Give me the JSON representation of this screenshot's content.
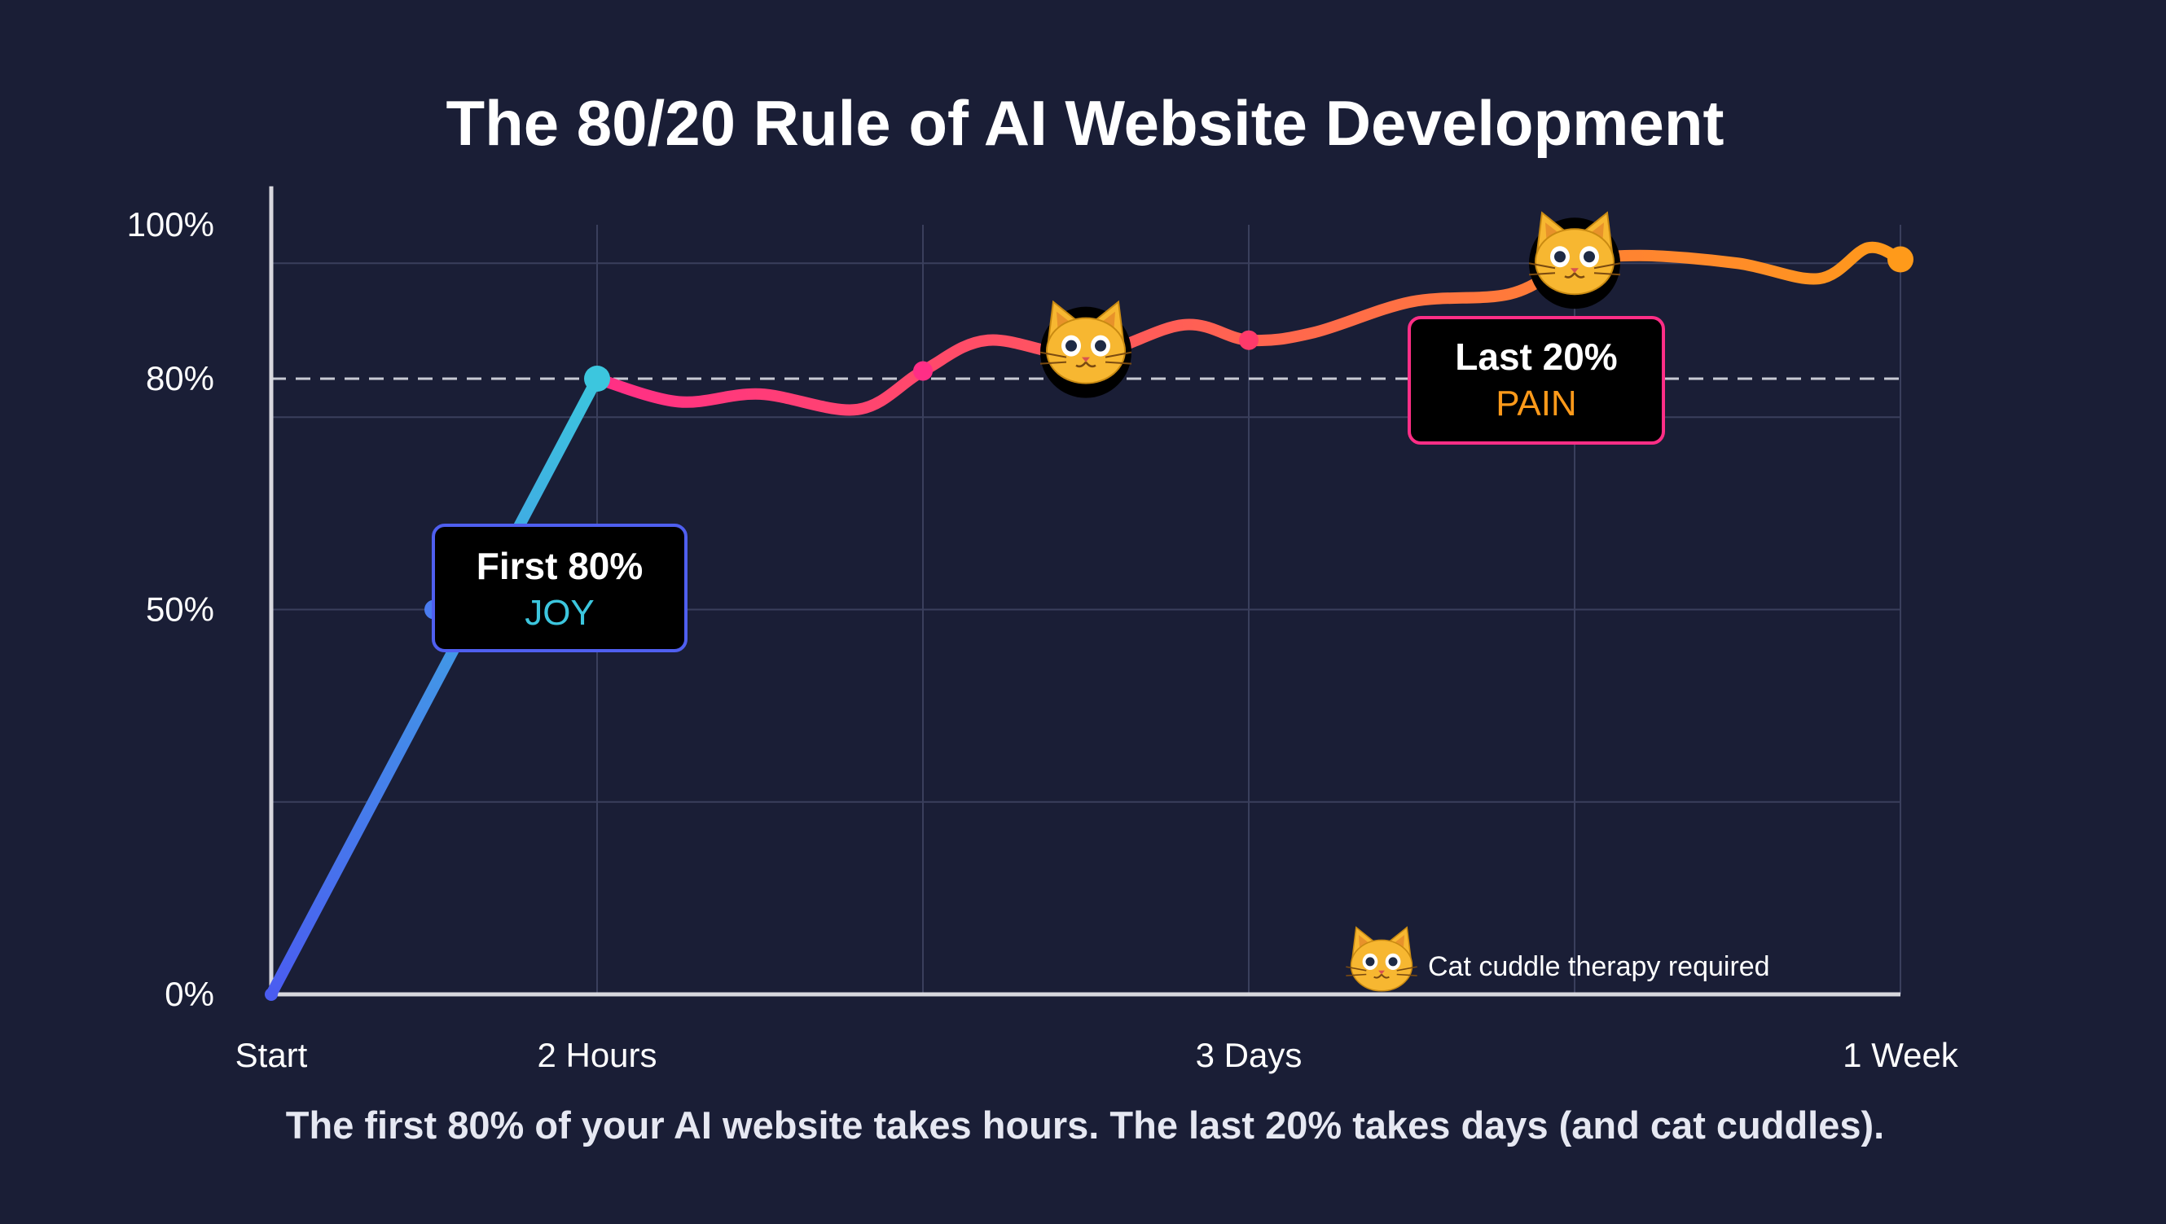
{
  "chart_data": {
    "type": "line",
    "title": "The 80/20 Rule of AI Website Development",
    "subtitle": "The first 80% of your AI website takes hours. The last 20% takes days (and cat cuddles).",
    "x_ticks": [
      "Start",
      "2 Hours",
      "3 Days",
      "1 Week"
    ],
    "y_ticks": [
      "0%",
      "50%",
      "80%",
      "100%"
    ],
    "ylim": [
      0,
      100
    ],
    "grid": true,
    "reference_line": 80,
    "series": [
      {
        "segment": "first",
        "color_start": "#4a5cf0",
        "color_end": "#3cc6de",
        "points": [
          [
            0,
            0
          ],
          [
            0.5,
            50
          ],
          [
            1,
            80
          ]
        ]
      },
      {
        "segment": "last",
        "color_start": "#ff2e86",
        "color_end": "#ff9a1a",
        "points": [
          [
            1,
            80
          ],
          [
            1.25,
            77
          ],
          [
            1.5,
            78
          ],
          [
            1.8,
            76
          ],
          [
            2,
            81
          ],
          [
            2.2,
            85
          ],
          [
            2.5,
            83
          ],
          [
            2.8,
            87
          ],
          [
            3,
            85
          ],
          [
            3.2,
            86
          ],
          [
            3.5,
            90
          ],
          [
            3.8,
            91
          ],
          [
            4,
            95
          ],
          [
            4.2,
            96
          ],
          [
            4.5,
            95
          ],
          [
            4.75,
            93
          ],
          [
            4.9,
            97
          ],
          [
            5,
            95.5
          ]
        ]
      }
    ],
    "annotations": {
      "first": {
        "title": "First 80%",
        "label": "JOY",
        "color": "#3cc6de"
      },
      "last": {
        "title": "Last 20%",
        "label": "PAIN",
        "color": "#ff9a1a"
      },
      "cat_note": "Cat cuddle therapy required"
    },
    "markers": [
      {
        "icon": "cat-face-icon",
        "x": 2.5,
        "y": 83
      },
      {
        "icon": "cat-face-icon",
        "x": 4,
        "y": 95
      },
      {
        "icon": "cat-face-icon",
        "x": 3.4,
        "y": 4
      }
    ]
  },
  "colors": {
    "background": "#1a1e36",
    "grid": "#3a3f5c",
    "axis": "#d8d8de",
    "first_box_border": "#4f5ff0",
    "last_box_border": "#ff2e86"
  }
}
